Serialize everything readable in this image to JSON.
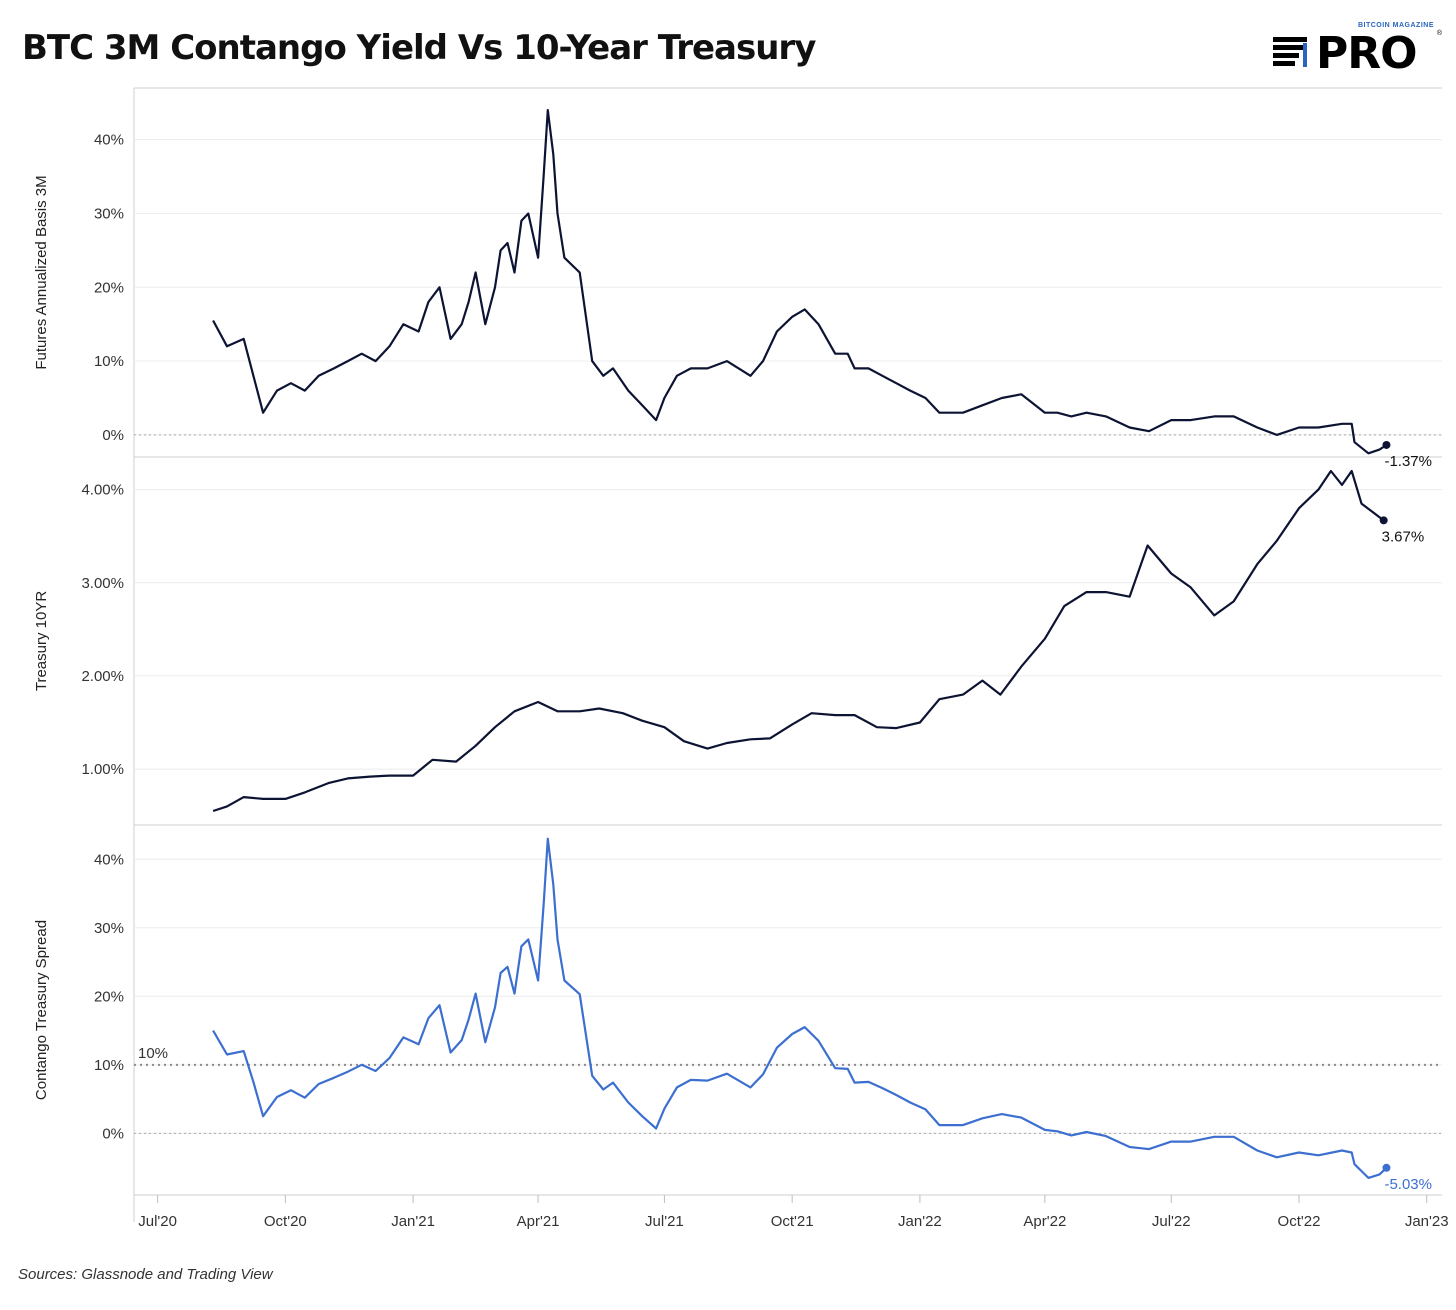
{
  "title": "BTC 3M Contango Yield Vs 10-Year Treasury",
  "logo": {
    "top_text": "BITCOIN MAGAZINE",
    "main_text": "PRO",
    "registered": "®"
  },
  "source": "Sources: Glassnode and Trading View",
  "colors": {
    "basis": "#0d1433",
    "treasury": "#0d1433",
    "spread": "#3c6fd0",
    "grid": "#ececec"
  },
  "chart_data": [
    {
      "type": "line",
      "ylabel": "Futures Annualized Basis 3M",
      "ylim": [
        -3,
        47
      ],
      "yticks": [
        0,
        10,
        20,
        30,
        40
      ],
      "ytick_labels": [
        "0%",
        "10%",
        "20%",
        "30%",
        "40%"
      ],
      "reference_lines": [
        0
      ],
      "end_label": "-1.37%",
      "series": [
        {
          "x": [
            "2020-08-10",
            "2020-08-20",
            "2020-09-01",
            "2020-09-08",
            "2020-09-15",
            "2020-09-25",
            "2020-10-05",
            "2020-10-15",
            "2020-10-25",
            "2020-11-05",
            "2020-11-15",
            "2020-11-25",
            "2020-12-05",
            "2020-12-15",
            "2020-12-25",
            "2021-01-05",
            "2021-01-12",
            "2021-01-20",
            "2021-01-28",
            "2021-02-05",
            "2021-02-10",
            "2021-02-15",
            "2021-02-22",
            "2021-03-01",
            "2021-03-05",
            "2021-03-10",
            "2021-03-15",
            "2021-03-20",
            "2021-03-25",
            "2021-04-01",
            "2021-04-05",
            "2021-04-08",
            "2021-04-12",
            "2021-04-15",
            "2021-04-20",
            "2021-05-01",
            "2021-05-10",
            "2021-05-18",
            "2021-05-25",
            "2021-06-05",
            "2021-06-15",
            "2021-06-25",
            "2021-07-01",
            "2021-07-10",
            "2021-07-20",
            "2021-08-01",
            "2021-08-15",
            "2021-09-01",
            "2021-09-10",
            "2021-09-20",
            "2021-10-01",
            "2021-10-10",
            "2021-10-20",
            "2021-11-01",
            "2021-11-10",
            "2021-11-15",
            "2021-11-25",
            "2021-12-05",
            "2021-12-15",
            "2021-12-25",
            "2022-01-05",
            "2022-01-15",
            "2022-02-01",
            "2022-02-15",
            "2022-03-01",
            "2022-03-15",
            "2022-04-01",
            "2022-04-10",
            "2022-04-20",
            "2022-05-01",
            "2022-05-15",
            "2022-06-01",
            "2022-06-15",
            "2022-07-01",
            "2022-07-15",
            "2022-08-01",
            "2022-08-15",
            "2022-09-01",
            "2022-09-15",
            "2022-10-01",
            "2022-10-15",
            "2022-11-01",
            "2022-11-08",
            "2022-11-10",
            "2022-11-20",
            "2022-11-28",
            "2022-12-03"
          ],
          "values": [
            15.5,
            12,
            13,
            8,
            3,
            6,
            7,
            6,
            8,
            9,
            10,
            11,
            10,
            12,
            15,
            14,
            18,
            20,
            13,
            15,
            18,
            22,
            15,
            20,
            25,
            26,
            22,
            29,
            30,
            24,
            35,
            44,
            38,
            30,
            24,
            22,
            10,
            8,
            9,
            6,
            4,
            2,
            5,
            8,
            9,
            9,
            10,
            8,
            10,
            14,
            16,
            17,
            15,
            11,
            11,
            9,
            9,
            8,
            7,
            6,
            5,
            3,
            3,
            4,
            5,
            5.5,
            3,
            3,
            2.5,
            3,
            2.5,
            1,
            0.5,
            2,
            2,
            2.5,
            2.5,
            1,
            0,
            1,
            1,
            1.5,
            1.5,
            -1,
            -2.5,
            -2,
            -1.37
          ]
        }
      ]
    },
    {
      "type": "line",
      "ylabel": "Treasury 10YR",
      "ylim": [
        0.4,
        4.35
      ],
      "yticks": [
        1,
        2,
        3,
        4
      ],
      "ytick_labels": [
        "1.00%",
        "2.00%",
        "3.00%",
        "4.00%"
      ],
      "end_label": "3.67%",
      "series": [
        {
          "x": [
            "2020-08-10",
            "2020-08-20",
            "2020-09-01",
            "2020-09-15",
            "2020-10-01",
            "2020-10-15",
            "2020-11-01",
            "2020-11-15",
            "2020-12-01",
            "2020-12-15",
            "2021-01-01",
            "2021-01-15",
            "2021-02-01",
            "2021-02-15",
            "2021-03-01",
            "2021-03-15",
            "2021-04-01",
            "2021-04-15",
            "2021-05-01",
            "2021-05-15",
            "2021-06-01",
            "2021-06-15",
            "2021-07-01",
            "2021-07-15",
            "2021-08-01",
            "2021-08-15",
            "2021-09-01",
            "2021-09-15",
            "2021-10-01",
            "2021-10-15",
            "2021-11-01",
            "2021-11-15",
            "2021-12-01",
            "2021-12-15",
            "2022-01-01",
            "2022-01-15",
            "2022-02-01",
            "2022-02-15",
            "2022-02-28",
            "2022-03-15",
            "2022-04-01",
            "2022-04-15",
            "2022-05-01",
            "2022-05-15",
            "2022-06-01",
            "2022-06-14",
            "2022-07-01",
            "2022-07-15",
            "2022-08-01",
            "2022-08-15",
            "2022-09-01",
            "2022-09-15",
            "2022-10-01",
            "2022-10-15",
            "2022-10-24",
            "2022-11-01",
            "2022-11-08",
            "2022-11-15",
            "2022-12-01"
          ],
          "values": [
            0.55,
            0.6,
            0.7,
            0.68,
            0.68,
            0.75,
            0.85,
            0.9,
            0.92,
            0.93,
            0.93,
            1.1,
            1.08,
            1.25,
            1.45,
            1.62,
            1.72,
            1.62,
            1.62,
            1.65,
            1.6,
            1.52,
            1.45,
            1.3,
            1.22,
            1.28,
            1.32,
            1.33,
            1.48,
            1.6,
            1.58,
            1.58,
            1.45,
            1.44,
            1.5,
            1.75,
            1.8,
            1.95,
            1.8,
            2.1,
            2.4,
            2.75,
            2.9,
            2.9,
            2.85,
            3.4,
            3.1,
            2.95,
            2.65,
            2.8,
            3.2,
            3.45,
            3.8,
            4.0,
            4.2,
            4.05,
            4.2,
            3.85,
            3.67
          ]
        }
      ]
    },
    {
      "type": "line",
      "ylabel": "Contango Treasury Spread",
      "ylim": [
        -9,
        45
      ],
      "yticks": [
        0,
        10,
        20,
        30,
        40
      ],
      "ytick_labels": [
        "0%",
        "10%",
        "20%",
        "30%",
        "40%"
      ],
      "reference_lines": [
        0,
        10
      ],
      "reference_label": "10%",
      "end_label": "-5.03%",
      "series": [
        {
          "x": [
            "2020-08-10",
            "2020-08-20",
            "2020-09-01",
            "2020-09-08",
            "2020-09-15",
            "2020-09-25",
            "2020-10-05",
            "2020-10-15",
            "2020-10-25",
            "2020-11-05",
            "2020-11-15",
            "2020-11-25",
            "2020-12-05",
            "2020-12-15",
            "2020-12-25",
            "2021-01-05",
            "2021-01-12",
            "2021-01-20",
            "2021-01-28",
            "2021-02-05",
            "2021-02-10",
            "2021-02-15",
            "2021-02-22",
            "2021-03-01",
            "2021-03-05",
            "2021-03-10",
            "2021-03-15",
            "2021-03-20",
            "2021-03-25",
            "2021-04-01",
            "2021-04-05",
            "2021-04-08",
            "2021-04-12",
            "2021-04-15",
            "2021-04-20",
            "2021-05-01",
            "2021-05-10",
            "2021-05-18",
            "2021-05-25",
            "2021-06-05",
            "2021-06-15",
            "2021-06-25",
            "2021-07-01",
            "2021-07-10",
            "2021-07-20",
            "2021-08-01",
            "2021-08-15",
            "2021-09-01",
            "2021-09-10",
            "2021-09-20",
            "2021-10-01",
            "2021-10-10",
            "2021-10-20",
            "2021-11-01",
            "2021-11-10",
            "2021-11-15",
            "2021-11-25",
            "2021-12-05",
            "2021-12-15",
            "2021-12-25",
            "2022-01-05",
            "2022-01-15",
            "2022-02-01",
            "2022-02-15",
            "2022-03-01",
            "2022-03-15",
            "2022-04-01",
            "2022-04-10",
            "2022-04-20",
            "2022-05-01",
            "2022-05-15",
            "2022-06-01",
            "2022-06-15",
            "2022-07-01",
            "2022-07-15",
            "2022-08-01",
            "2022-08-15",
            "2022-09-01",
            "2022-09-15",
            "2022-10-01",
            "2022-10-15",
            "2022-11-01",
            "2022-11-08",
            "2022-11-10",
            "2022-11-20",
            "2022-11-28",
            "2022-12-03"
          ],
          "values": [
            15,
            11.5,
            12,
            7.5,
            2.5,
            5.3,
            6.3,
            5.2,
            7.2,
            8.1,
            9,
            10,
            9.1,
            11,
            14,
            13,
            16.8,
            18.7,
            11.8,
            13.6,
            16.6,
            20.4,
            13.3,
            18.4,
            23.4,
            24.3,
            20.4,
            27.3,
            28.3,
            22.3,
            33.3,
            43,
            36.3,
            28.3,
            22.3,
            20.3,
            8.4,
            6.4,
            7.4,
            4.5,
            2.5,
            0.7,
            3.6,
            6.7,
            7.8,
            7.7,
            8.7,
            6.7,
            8.6,
            12.5,
            14.5,
            15.5,
            13.5,
            9.5,
            9.4,
            7.4,
            7.5,
            6.6,
            5.6,
            4.5,
            3.5,
            1.2,
            1.2,
            2.2,
            2.8,
            2.3,
            0.5,
            0.3,
            -0.3,
            0.2,
            -0.4,
            -2,
            -2.3,
            -1.2,
            -1.2,
            -0.5,
            -0.5,
            -2.5,
            -3.5,
            -2.8,
            -3.2,
            -2.5,
            -2.8,
            -4.5,
            -6.5,
            -6,
            -5.03
          ]
        }
      ]
    }
  ],
  "x_axis": {
    "tick_dates": [
      "2020-07-01",
      "2020-10-01",
      "2021-01-01",
      "2021-04-01",
      "2021-07-01",
      "2021-10-01",
      "2022-01-01",
      "2022-04-01",
      "2022-07-01",
      "2022-10-01",
      "2023-01-01"
    ],
    "tick_labels": [
      "Jul'20",
      "Oct'20",
      "Jan'21",
      "Apr'21",
      "Jul'21",
      "Oct'21",
      "Jan'22",
      "Apr'22",
      "Jul'22",
      "Oct'22",
      "Jan'23"
    ]
  }
}
